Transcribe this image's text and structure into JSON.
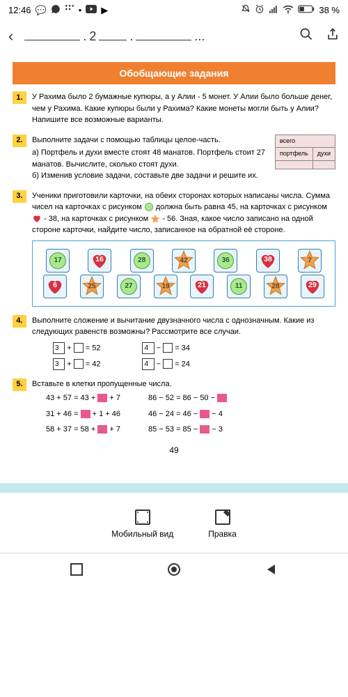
{
  "status": {
    "time": "12:46",
    "battery": "38 %"
  },
  "breadcrumb": {
    "num": "2",
    "dots": "..."
  },
  "section_title": "Обобщающие задания",
  "tasks": {
    "t1": {
      "num": "1.",
      "text": "У Рахима было 2 бумажные купюры, а у Алии - 5 монет. У Алии было больше денег, чем у Рахима. Какие купюры были у Рахима? Какие монеты могли быть у Алии? Напишите все возможные варианты."
    },
    "t2": {
      "num": "2.",
      "intro": "Выполните задачи с помощью таблицы целое-часть.",
      "a": "а) Портфель и духи вместе стоят 48 манатов. Портфель стоит 27 манатов. Вычислите, сколько стоят духи.",
      "b": "б) Изменив условие задачи, составьте две задачи и решите их.",
      "table": {
        "h1": "всего",
        "c1": "портфель",
        "c2": "духи"
      }
    },
    "t3": {
      "num": "3.",
      "p1": "Ученики приготовили карточки, на обеих сторонах которых написаны числа. Сумма чисел на карточках с рисунком",
      "p2": "должна быть равна 45, на карточках с рисунком",
      "p3": "- 38, на карточках с рисунком",
      "p4": "- 56. Зная, какое число записано на одной стороне карточки, найдите число, записанное на обратной её стороне.",
      "cards": {
        "row1": [
          {
            "shape": "circle",
            "val": "17"
          },
          {
            "shape": "heart",
            "val": "16"
          },
          {
            "shape": "circle",
            "val": "28"
          },
          {
            "shape": "star",
            "val": "42"
          },
          {
            "shape": "circle",
            "val": "36"
          },
          {
            "shape": "heart",
            "val": "38"
          },
          {
            "shape": "star",
            "val": "7"
          }
        ],
        "row2": [
          {
            "shape": "heart",
            "val": "6"
          },
          {
            "shape": "star",
            "val": "25"
          },
          {
            "shape": "circle",
            "val": "27"
          },
          {
            "shape": "star",
            "val": "19"
          },
          {
            "shape": "heart",
            "val": "21"
          },
          {
            "shape": "circle",
            "val": "11"
          },
          {
            "shape": "star",
            "val": "28"
          },
          {
            "shape": "heart",
            "val": "29"
          }
        ]
      }
    },
    "t4": {
      "num": "4.",
      "text": "Выполните сложение и вычитание двузначного числа с однозначным. Какие из следующих равенств возможны? Рассмотрите все случаи.",
      "eq": {
        "a": "= 52",
        "b": "= 42",
        "c": "= 34",
        "d": "= 24",
        "p3": "3",
        "p4": "4"
      }
    },
    "t5": {
      "num": "5.",
      "text": "Вставьте в клетки пропущенные числа.",
      "left": [
        "43 + 57 = 43 +",
        "31 + 46 =",
        "58 + 37 = 58 +"
      ],
      "left_end": [
        "+ 7",
        "+ 1 + 46",
        "+ 7"
      ],
      "right": [
        "86 − 52 = 86 − 50 −",
        "46 − 24 = 46 −",
        "85 − 53 = 85 −"
      ],
      "right_end": [
        "",
        "− 4",
        "− 3"
      ]
    }
  },
  "page_num": "49",
  "bottom": {
    "mobile": "Мобильный вид",
    "edit": "Правка"
  },
  "colors": {
    "orange": "#f08030",
    "yellow": "#ffd040",
    "green": "#a8e890",
    "red": "#d83040",
    "star": "#f0a050",
    "pink": "#e85a8a",
    "blue": "#4aa3d8"
  }
}
